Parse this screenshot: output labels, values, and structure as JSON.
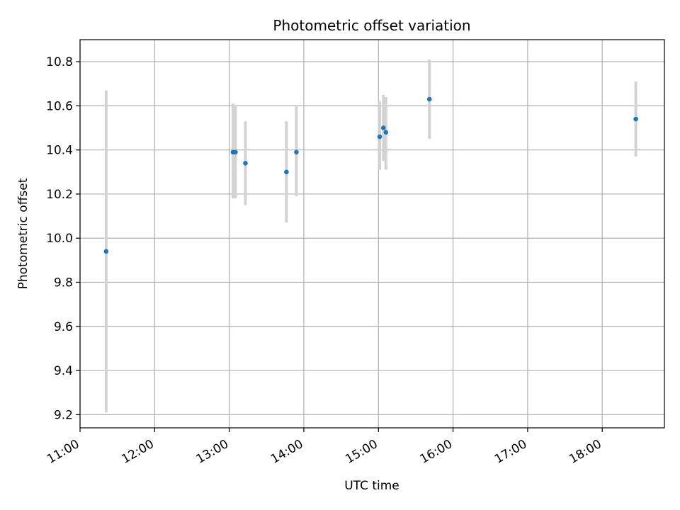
{
  "chart_data": {
    "type": "scatter",
    "title": "Photometric offset variation",
    "xlabel": "UTC time",
    "ylabel": "Photometric offset",
    "x_tick_labels": [
      "11:00",
      "12:00",
      "13:00",
      "14:00",
      "15:00",
      "16:00",
      "17:00",
      "18:00"
    ],
    "y_tick_labels": [
      "9.2",
      "9.4",
      "9.6",
      "9.8",
      "10.0",
      "10.2",
      "10.4",
      "10.6",
      "10.8"
    ],
    "y_ticks": [
      9.2,
      9.4,
      9.6,
      9.8,
      10.0,
      10.2,
      10.4,
      10.6,
      10.8
    ],
    "xlim": [
      "11:00",
      "18:50"
    ],
    "ylim": [
      9.14,
      10.9
    ],
    "grid": true,
    "colors": {
      "point": "#1f77b4",
      "errorbar": "#d3d3d3",
      "grid": "#b0b0b0"
    },
    "series": [
      {
        "points": [
          {
            "x": "11:21",
            "y": 9.94,
            "err_low": 9.21,
            "err_high": 10.67
          },
          {
            "x": "13:03",
            "y": 10.39,
            "err_low": 10.18,
            "err_high": 10.61
          },
          {
            "x": "13:05",
            "y": 10.39,
            "err_low": 10.18,
            "err_high": 10.6
          },
          {
            "x": "13:13",
            "y": 10.34,
            "err_low": 10.15,
            "err_high": 10.53
          },
          {
            "x": "13:46",
            "y": 10.3,
            "err_low": 10.07,
            "err_high": 10.53
          },
          {
            "x": "13:54",
            "y": 10.39,
            "err_low": 10.19,
            "err_high": 10.6
          },
          {
            "x": "15:01",
            "y": 10.46,
            "err_low": 10.31,
            "err_high": 10.62
          },
          {
            "x": "15:04",
            "y": 10.5,
            "err_low": 10.35,
            "err_high": 10.65
          },
          {
            "x": "15:06",
            "y": 10.48,
            "err_low": 10.31,
            "err_high": 10.64
          },
          {
            "x": "15:41",
            "y": 10.63,
            "err_low": 10.45,
            "err_high": 10.81
          },
          {
            "x": "18:27",
            "y": 10.54,
            "err_low": 10.37,
            "err_high": 10.71
          }
        ]
      }
    ]
  }
}
